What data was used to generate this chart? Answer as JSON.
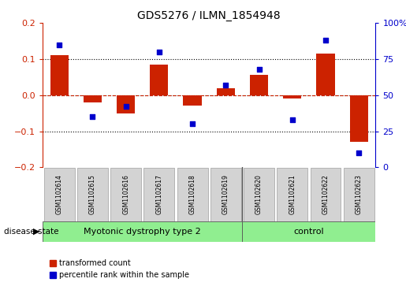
{
  "title": "GDS5276 / ILMN_1854948",
  "samples": [
    "GSM1102614",
    "GSM1102615",
    "GSM1102616",
    "GSM1102617",
    "GSM1102618",
    "GSM1102619",
    "GSM1102620",
    "GSM1102621",
    "GSM1102622",
    "GSM1102623"
  ],
  "bar_values": [
    0.11,
    -0.02,
    -0.05,
    0.085,
    -0.03,
    0.02,
    0.055,
    -0.01,
    0.115,
    -0.13
  ],
  "dot_values": [
    85,
    35,
    42,
    80,
    30,
    57,
    68,
    33,
    88,
    10
  ],
  "bar_color": "#cc2200",
  "dot_color": "#0000cc",
  "ylim_left": [
    -0.2,
    0.2
  ],
  "ylim_right": [
    0,
    100
  ],
  "yticks_left": [
    -0.2,
    -0.1,
    0.0,
    0.1,
    0.2
  ],
  "yticks_right": [
    0,
    25,
    50,
    75,
    100
  ],
  "yticklabels_right": [
    "0",
    "25",
    "50",
    "75",
    "100%"
  ],
  "hlines_dotted": [
    0.1,
    0.0,
    -0.1
  ],
  "zero_line_color": "#cc2200",
  "group1_label": "Myotonic dystrophy type 2",
  "group2_label": "control",
  "group1_count": 6,
  "group2_count": 4,
  "group_color": "#90ee90",
  "sample_box_color": "#d3d3d3",
  "disease_state_label": "disease state",
  "legend_bar_label": "transformed count",
  "legend_dot_label": "percentile rank within the sample",
  "bar_width": 0.55,
  "title_fontsize": 10,
  "tick_fontsize": 8,
  "sample_fontsize": 5.5,
  "group_fontsize": 8,
  "legend_fontsize": 7
}
